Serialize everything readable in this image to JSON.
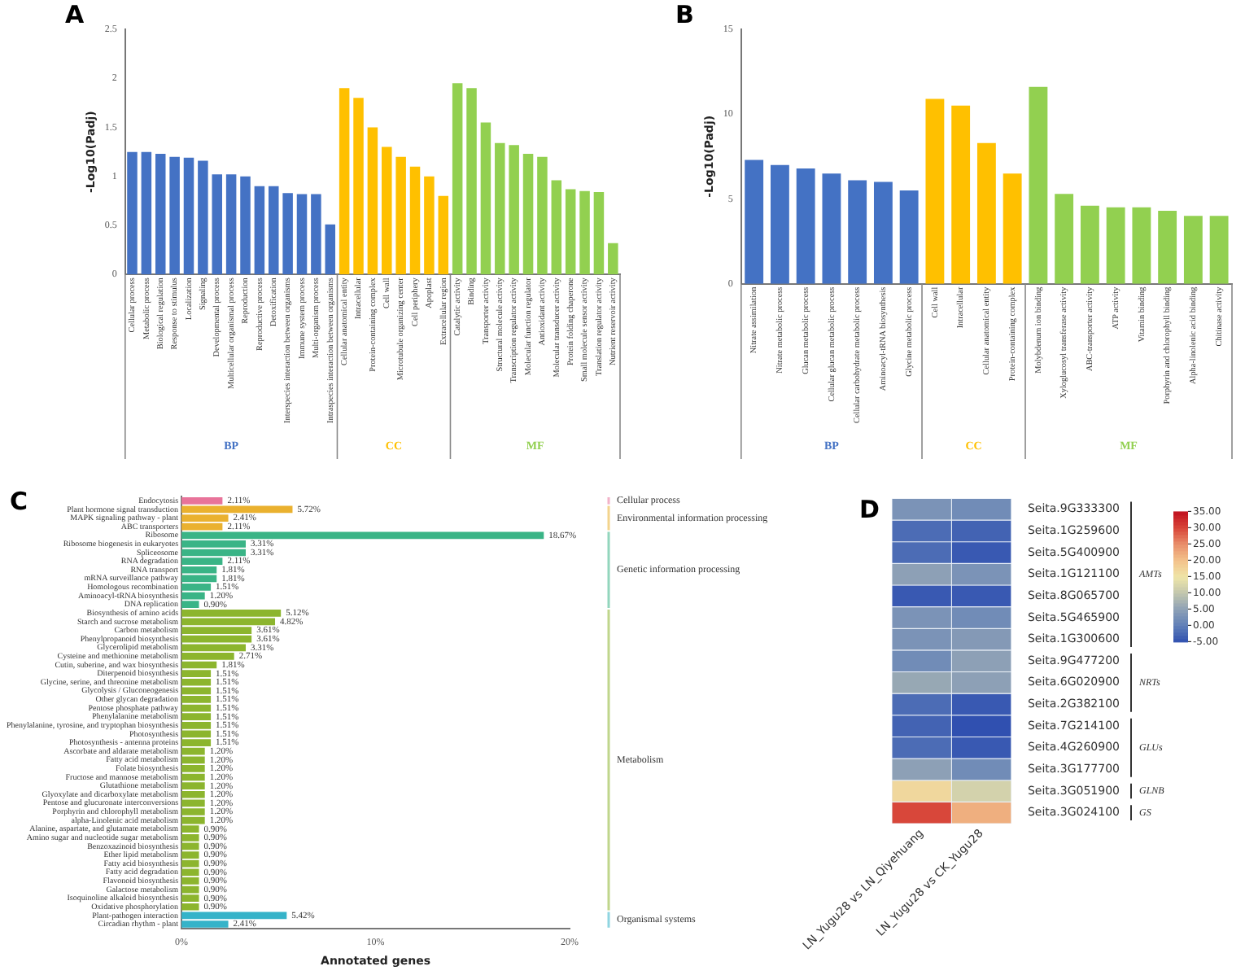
{
  "chart_data": [
    {
      "type": "bar",
      "title": "A",
      "ylabel": "-Log10(Padj)",
      "ylim": [
        0,
        2.5
      ],
      "yticks": [
        0,
        0.5,
        1,
        1.5,
        2,
        2.5
      ],
      "categories": [
        "Cellular process",
        "Metabolic process",
        "Biological regulation",
        "Response to stimulus",
        "Localization",
        "Signaling",
        "Developmental process",
        "Multicellular organismal process",
        "Reproduction",
        "Reproductive process",
        "Detoxification",
        "Interspecies interaction between organisms",
        "Immune system process",
        "Multi-organism process",
        "Intraspecies interaction between organisms",
        "Cellular anatomical entity",
        "Intracellular",
        "Protein-containing complex",
        "Cell wall",
        "Microtubule organizing center",
        "Cell periphery",
        "Apoplast",
        "Extracellular region",
        "Catalytic activity",
        "Binding",
        "Transporter activity",
        "Structural molecule activity",
        "Transcription regulator activity",
        "Molecular function regulator",
        "Antioxidant activity",
        "Molecular transducer activity",
        "Protein folding chaperone",
        "Small molecule sensor activity",
        "Translation regulator activity",
        "Nutrient reservoir activity"
      ],
      "series": [
        {
          "name": "BP",
          "color": "#4472c4",
          "values": [
            1.25,
            1.25,
            1.23,
            1.2,
            1.19,
            1.16,
            1.02,
            1.02,
            1.0,
            0.9,
            0.9,
            0.83,
            0.82,
            0.82,
            0.51,
            null,
            null,
            null,
            null,
            null,
            null,
            null,
            null,
            null,
            null,
            null,
            null,
            null,
            null,
            null,
            null,
            null,
            null,
            null,
            null
          ]
        },
        {
          "name": "CC",
          "color": "#ffc000",
          "values": [
            null,
            null,
            null,
            null,
            null,
            null,
            null,
            null,
            null,
            null,
            null,
            null,
            null,
            null,
            null,
            1.9,
            1.8,
            1.5,
            1.3,
            1.2,
            1.1,
            1.0,
            0.8,
            null,
            null,
            null,
            null,
            null,
            null,
            null,
            null,
            null,
            null,
            null,
            null
          ]
        },
        {
          "name": "MF",
          "color": "#92d050",
          "values": [
            null,
            null,
            null,
            null,
            null,
            null,
            null,
            null,
            null,
            null,
            null,
            null,
            null,
            null,
            null,
            null,
            null,
            null,
            null,
            null,
            null,
            null,
            null,
            1.95,
            1.9,
            1.55,
            1.34,
            1.32,
            1.23,
            1.2,
            0.96,
            0.87,
            0.85,
            0.84,
            0.32
          ]
        }
      ]
    },
    {
      "type": "bar",
      "title": "B",
      "ylabel": "-Log10(Padj)",
      "ylim": [
        0,
        15
      ],
      "yticks": [
        0,
        5,
        10,
        15
      ],
      "categories": [
        "Nitrate assimilation",
        "Nitrate metabolic process",
        "Glucan metabolic process",
        "Cellular glucan metabolic process",
        "Cellular carbohydrate metabolic process",
        "Aminoacyl-tRNA biosynthesis",
        "Glycine metabolic process",
        "Cell wall",
        "Intracellular",
        "Cellular anatomical entity",
        "Protein-containing complex",
        "Molybdenum ion binding",
        "Xyloglucosyl transferase activity",
        "ABC-transporter activity",
        "ATP activity",
        "Vitamin binding",
        "Porphyrin and chlorophyll binding",
        "Alpha-linolenic acid binding",
        "Chitinase activity"
      ],
      "series": [
        {
          "name": "BP",
          "color": "#4472c4",
          "values": [
            7.3,
            7.0,
            6.8,
            6.5,
            6.1,
            6.0,
            5.5,
            null,
            null,
            null,
            null,
            null,
            null,
            null,
            null,
            null,
            null,
            null,
            null
          ]
        },
        {
          "name": "CC",
          "color": "#ffc000",
          "values": [
            null,
            null,
            null,
            null,
            null,
            null,
            null,
            10.9,
            10.5,
            8.3,
            6.5,
            null,
            null,
            null,
            null,
            null,
            null,
            null,
            null
          ]
        },
        {
          "name": "MF",
          "color": "#92d050",
          "values": [
            null,
            null,
            null,
            null,
            null,
            null,
            null,
            null,
            null,
            null,
            null,
            11.6,
            5.3,
            4.6,
            4.5,
            4.5,
            4.3,
            4.0,
            4.0
          ]
        }
      ]
    },
    {
      "type": "bar",
      "title": "C",
      "orientation": "horizontal",
      "legend": "right",
      "xlabel": "Annotated genes",
      "xlim": [
        0,
        20
      ],
      "xticks": [
        {
          "value": 0,
          "label": "0%"
        },
        {
          "value": 10,
          "label": "10%"
        },
        {
          "value": 20,
          "label": "20%"
        }
      ],
      "categories": [
        "Endocytosis",
        "Plant hormone signal transduction",
        "MAPK signaling pathway - plant",
        "ABC transporters",
        "Ribosome",
        "Ribosome biogenesis in eukaryotes",
        "Spliceosome",
        "RNA degradation",
        "RNA transport",
        "mRNA surveillance pathway",
        "Homologous recombination",
        "Aminoacyl-tRNA biosynthesis",
        "DNA replication",
        "Biosynthesis of amino acids",
        "Starch and sucrose metabolism",
        "Carbon metabolism",
        "Phenylpropanoid biosynthesis",
        "Glycerolipid metabolism",
        "Cysteine and methionine metabolism",
        "Cutin, suberine, and wax biosynthesis",
        "Diterpenoid biosynthesis",
        "Glycine, serine, and threonine metabolism",
        "Glycolysis / Gluconeogenesis",
        "Other glycan degradation",
        "Pentose phosphate pathway",
        "Phenylalanine metabolism",
        "Phenylalanine, tyrosine, and tryptophan biosynthesis",
        "Photosynthesis",
        "Photosynthesis - antenna proteins",
        "Ascorbate and aldarate metabolism",
        "Fatty acid metabolism",
        "Folate biosynthesis",
        "Fructose and mannose metabolism",
        "Glutathione metabolism",
        "Glyoxylate and dicarboxylate metabolism",
        "Pentose and glucuronate interconversions",
        "Porphyrin and chlorophyll metabolism",
        "alpha-Linolenic acid metabolism",
        "Alanine, aspartate, and glutamate metabolism",
        "Amino sugar and nucleotide sugar metabolism",
        "Benzoxazinoid biosynthesis",
        "Ether lipid metabolism",
        "Fatty acid biosynthesis",
        "Fatty acid degradation",
        "Flavonoid biosynthesis",
        "Galactose metabolism",
        "Isoquinoline alkaloid biosynthesis",
        "Oxidative phosphorylation",
        "Plant-pathogen interaction",
        "Circadian rhythm - plant"
      ],
      "series": [
        {
          "name": "Cellular process",
          "color": "#e8739a",
          "values": [
            2.11,
            null,
            null,
            null,
            null,
            null,
            null,
            null,
            null,
            null,
            null,
            null,
            null,
            null,
            null,
            null,
            null,
            null,
            null,
            null,
            null,
            null,
            null,
            null,
            null,
            null,
            null,
            null,
            null,
            null,
            null,
            null,
            null,
            null,
            null,
            null,
            null,
            null,
            null,
            null,
            null,
            null,
            null,
            null,
            null,
            null,
            null,
            null,
            null,
            null
          ],
          "value_labels": [
            "2.11%",
            null,
            null,
            null,
            null,
            null,
            null,
            null,
            null,
            null,
            null,
            null,
            null,
            null,
            null,
            null,
            null,
            null,
            null,
            null,
            null,
            null,
            null,
            null,
            null,
            null,
            null,
            null,
            null,
            null,
            null,
            null,
            null,
            null,
            null,
            null,
            null,
            null,
            null,
            null,
            null,
            null,
            null,
            null,
            null,
            null,
            null,
            null,
            null,
            null
          ]
        },
        {
          "name": "Environmental information processing",
          "color": "#eab12f",
          "values": [
            null,
            5.72,
            2.41,
            2.11,
            null,
            null,
            null,
            null,
            null,
            null,
            null,
            null,
            null,
            null,
            null,
            null,
            null,
            null,
            null,
            null,
            null,
            null,
            null,
            null,
            null,
            null,
            null,
            null,
            null,
            null,
            null,
            null,
            null,
            null,
            null,
            null,
            null,
            null,
            null,
            null,
            null,
            null,
            null,
            null,
            null,
            null,
            null,
            null,
            null,
            null
          ],
          "value_labels": [
            null,
            "5.72%",
            "2.41%",
            "2.11%",
            null,
            null,
            null,
            null,
            null,
            null,
            null,
            null,
            null,
            null,
            null,
            null,
            null,
            null,
            null,
            null,
            null,
            null,
            null,
            null,
            null,
            null,
            null,
            null,
            null,
            null,
            null,
            null,
            null,
            null,
            null,
            null,
            null,
            null,
            null,
            null,
            null,
            null,
            null,
            null,
            null,
            null,
            null,
            null,
            null,
            null
          ]
        },
        {
          "name": "Genetic information processing",
          "color": "#3ab486",
          "values": [
            null,
            null,
            null,
            null,
            18.67,
            3.31,
            3.31,
            2.11,
            1.81,
            1.81,
            1.51,
            1.2,
            0.9,
            null,
            null,
            null,
            null,
            null,
            null,
            null,
            null,
            null,
            null,
            null,
            null,
            null,
            null,
            null,
            null,
            null,
            null,
            null,
            null,
            null,
            null,
            null,
            null,
            null,
            null,
            null,
            null,
            null,
            null,
            null,
            null,
            null,
            null,
            null,
            null,
            null
          ],
          "value_labels": [
            null,
            null,
            null,
            null,
            "18.67%",
            "3.31%",
            "3.31%",
            "2.11%",
            "1.81%",
            "1.81%",
            "1.51%",
            "1.20%",
            "0.90%",
            null,
            null,
            null,
            null,
            null,
            null,
            null,
            null,
            null,
            null,
            null,
            null,
            null,
            null,
            null,
            null,
            null,
            null,
            null,
            null,
            null,
            null,
            null,
            null,
            null,
            null,
            null,
            null,
            null,
            null,
            null,
            null,
            null,
            null,
            null,
            null,
            null
          ]
        },
        {
          "name": "Metabolism",
          "color": "#8cb52e",
          "values": [
            null,
            null,
            null,
            null,
            null,
            null,
            null,
            null,
            null,
            null,
            null,
            null,
            null,
            5.12,
            4.82,
            3.61,
            3.61,
            3.31,
            2.71,
            1.81,
            1.51,
            1.51,
            1.51,
            1.51,
            1.51,
            1.51,
            1.51,
            1.51,
            1.51,
            1.2,
            1.2,
            1.2,
            1.2,
            1.2,
            1.2,
            1.2,
            1.2,
            1.2,
            0.9,
            0.9,
            0.9,
            0.9,
            0.9,
            0.9,
            0.9,
            0.9,
            0.9,
            0.9,
            null,
            null
          ],
          "value_labels": [
            null,
            null,
            null,
            null,
            null,
            null,
            null,
            null,
            null,
            null,
            null,
            null,
            null,
            "5.12%",
            "4.82%",
            "3.61%",
            "3.61%",
            "3.31%",
            "2.71%",
            "1.81%",
            "1.51%",
            "1.51%",
            "1.51%",
            "1.51%",
            "1.51%",
            "1.51%",
            "1.51%",
            "1.51%",
            "1.51%",
            "1.20%",
            "1.20%",
            "1.20%",
            "1.20%",
            "1.20%",
            "1.20%",
            "1.20%",
            "1.20%",
            "1.20%",
            "0.90%",
            "0.90%",
            "0.90%",
            "0.90%",
            "0.90%",
            "0.90%",
            "0.90%",
            "0.90%",
            "0.90%",
            "0.90%",
            null,
            null
          ]
        },
        {
          "name": "Organismal systems",
          "color": "#35b3c9",
          "values": [
            null,
            null,
            null,
            null,
            null,
            null,
            null,
            null,
            null,
            null,
            null,
            null,
            null,
            null,
            null,
            null,
            null,
            null,
            null,
            null,
            null,
            null,
            null,
            null,
            null,
            null,
            null,
            null,
            null,
            null,
            null,
            null,
            null,
            null,
            null,
            null,
            null,
            null,
            null,
            null,
            null,
            null,
            null,
            null,
            null,
            null,
            null,
            null,
            5.42,
            2.41
          ],
          "value_labels": [
            null,
            null,
            null,
            null,
            null,
            null,
            null,
            null,
            null,
            null,
            null,
            null,
            null,
            null,
            null,
            null,
            null,
            null,
            null,
            null,
            null,
            null,
            null,
            null,
            null,
            null,
            null,
            null,
            null,
            null,
            null,
            null,
            null,
            null,
            null,
            null,
            null,
            null,
            null,
            null,
            null,
            null,
            null,
            null,
            null,
            null,
            null,
            null,
            "5.42%",
            "2.41%"
          ]
        }
      ]
    },
    {
      "type": "heatmap",
      "title": "D",
      "categories": [
        "LN_Yugu28 vs LN_Qiyehuang",
        "LN_Yugu28 vs CK_Yugu28"
      ],
      "y_categories": [
        "Seita.9G333300",
        "Seita.1G259600",
        "Seita.5G400900",
        "Seita.1G121100",
        "Seita.8G065700",
        "Seita.5G465900",
        "Seita.1G300600",
        "Seita.9G477200",
        "Seita.6G020900",
        "Seita.2G382100",
        "Seita.7G214100",
        "Seita.4G260900",
        "Seita.3G177700",
        "Seita.3G051900",
        "Seita.3G024100"
      ],
      "y2_categories": [
        null,
        null,
        null,
        "AMTs",
        null,
        null,
        null,
        null,
        "NRTs",
        null,
        null,
        "GLUs",
        null,
        "GLNB",
        "GS"
      ],
      "cells": [
        [
          3,
          2
        ],
        [
          -2,
          -3
        ],
        [
          -2,
          -4
        ],
        [
          5,
          3
        ],
        [
          -4,
          -4
        ],
        [
          3,
          2
        ],
        [
          3,
          4
        ],
        [
          2,
          5
        ],
        [
          6,
          5
        ],
        [
          -2,
          -4
        ],
        [
          -3,
          -5
        ],
        [
          -2,
          -4
        ],
        [
          5,
          2
        ],
        [
          17,
          12
        ],
        [
          30,
          22
        ]
      ],
      "clim": [
        -5,
        35
      ],
      "cticks": [
        {
          "value": -5,
          "label": "-5.00"
        },
        {
          "value": 0,
          "label": "0.00"
        },
        {
          "value": 5,
          "label": "5.00"
        },
        {
          "value": 10,
          "label": "10.00"
        },
        {
          "value": 15,
          "label": "15.00"
        },
        {
          "value": 20,
          "label": "20.00"
        },
        {
          "value": 25,
          "label": "25.00"
        },
        {
          "value": 30,
          "label": "30.00"
        },
        {
          "value": 35,
          "label": "35.00"
        }
      ]
    }
  ]
}
